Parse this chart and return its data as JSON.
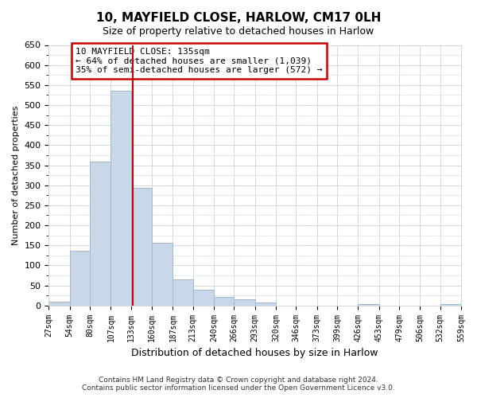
{
  "title": "10, MAYFIELD CLOSE, HARLOW, CM17 0LH",
  "subtitle": "Size of property relative to detached houses in Harlow",
  "xlabel": "Distribution of detached houses by size in Harlow",
  "ylabel": "Number of detached properties",
  "bar_edges": [
    27,
    54,
    80,
    107,
    133,
    160,
    187,
    213,
    240,
    266,
    293,
    320,
    346,
    373,
    399,
    426,
    453,
    479,
    506,
    532,
    559
  ],
  "bar_heights": [
    10,
    137,
    358,
    535,
    293,
    157,
    65,
    40,
    22,
    15,
    8,
    0,
    0,
    0,
    0,
    3,
    0,
    0,
    0,
    3
  ],
  "bar_color": "#c8d8e8",
  "bar_edge_color": "#a0b8cc",
  "property_line_x": 135,
  "property_line_color": "#cc0000",
  "annotation_line1": "10 MAYFIELD CLOSE: 135sqm",
  "annotation_line2": "← 64% of detached houses are smaller (1,039)",
  "annotation_line3": "35% of semi-detached houses are larger (572) →",
  "ylim": [
    0,
    650
  ],
  "yticks": [
    0,
    50,
    100,
    150,
    200,
    250,
    300,
    350,
    400,
    450,
    500,
    550,
    600,
    650
  ],
  "footer_line1": "Contains HM Land Registry data © Crown copyright and database right 2024.",
  "footer_line2": "Contains public sector information licensed under the Open Government Licence v3.0.",
  "bg_color": "#ffffff",
  "grid_color": "#d0d8e8"
}
